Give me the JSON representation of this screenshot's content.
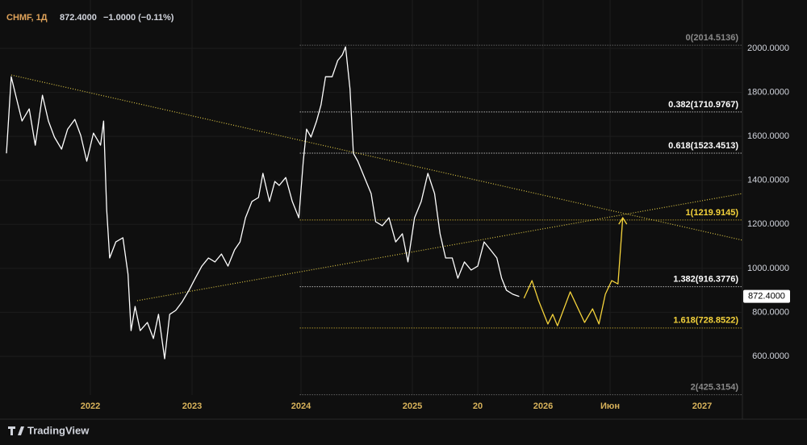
{
  "header": {
    "symbol": "CHMF, 1Д",
    "change": "−1.0000 (−0.11%)"
  },
  "footer": {
    "brand": "TradingView"
  },
  "chart_data": {
    "type": "line",
    "xlim": [
      2021.3,
      2027.4
    ],
    "xticks": [
      2022,
      2023,
      2024,
      2025,
      {
        "value": 2025.59,
        "label": "20"
      },
      2026,
      {
        "value": 2026.42,
        "label": "Июн"
      },
      2027
    ],
    "ylim": [
      424,
      2220
    ],
    "yticks": [
      {
        "value": 600,
        "label": "600.0000"
      },
      {
        "value": 800,
        "label": "800.0000"
      },
      {
        "value": 1000,
        "label": "1000.0000"
      },
      {
        "value": 1200,
        "label": "1200.0000"
      },
      {
        "value": 1400,
        "label": "1400.0000"
      },
      {
        "value": 1600,
        "label": "1600.0000"
      },
      {
        "value": 1800,
        "label": "1800.0000"
      },
      {
        "value": 2000,
        "label": "2000.0000"
      }
    ],
    "grid": true,
    "last_price": {
      "value": 872.4,
      "label": "872.4000"
    },
    "series": [
      {
        "color": "#ffffff",
        "x": [
          2021.3,
          2021.34,
          2021.38,
          2021.43,
          2021.49,
          2021.54,
          2021.6,
          2021.65,
          2021.7,
          2021.76,
          2021.81,
          2021.87,
          2021.92,
          2021.97,
          2022.03,
          2022.1,
          2022.13,
          2022.16,
          2022.19,
          2022.25,
          2022.32,
          2022.37,
          2022.4,
          2022.44,
          2022.49,
          2022.56,
          2022.62,
          2022.67,
          2022.73,
          2022.78,
          2022.84,
          2022.9,
          2022.97,
          2023.03,
          2023.09,
          2023.15,
          2023.21,
          2023.27,
          2023.33,
          2023.39,
          2023.44,
          2023.49,
          2023.55,
          2023.61,
          2023.65,
          2023.71,
          2023.76,
          2023.8,
          2023.86,
          2023.92,
          2023.98,
          2024.02,
          2024.05,
          2024.09,
          2024.14,
          2024.18,
          2024.22,
          2024.28,
          2024.33,
          2024.37,
          2024.4,
          2024.44,
          2024.47,
          2024.51,
          2024.57,
          2024.63,
          2024.67,
          2024.73,
          2024.79,
          2024.85,
          2024.91,
          2024.96,
          2025.02,
          2025.08,
          2025.14,
          2025.2,
          2025.25,
          2025.3,
          2025.36,
          2025.41,
          2025.47,
          2025.53,
          2025.59,
          2025.63,
          2025.67,
          2025.71,
          2025.74,
          2025.77,
          2025.81,
          2025.85
        ],
        "values": [
          1523,
          1871,
          1780,
          1670,
          1725,
          1560,
          1787,
          1670,
          1597,
          1542,
          1633,
          1677,
          1604,
          1487,
          1615,
          1560,
          1670,
          1267,
          1047,
          1120,
          1139,
          974,
          717,
          827,
          717,
          754,
          681,
          791,
          589,
          791,
          809,
          846,
          900,
          955,
          1010,
          1047,
          1029,
          1065,
          1010,
          1084,
          1120,
          1230,
          1304,
          1322,
          1432,
          1304,
          1395,
          1377,
          1413,
          1304,
          1230,
          1487,
          1633,
          1597,
          1670,
          1743,
          1871,
          1871,
          1945,
          1970,
          2007,
          1816,
          1523,
          1487,
          1413,
          1340,
          1212,
          1194,
          1230,
          1120,
          1157,
          1029,
          1230,
          1304,
          1432,
          1340,
          1157,
          1047,
          1047,
          955,
          1029,
          992,
          1010,
          1120,
          1084,
          1047,
          955,
          900,
          882,
          872.4
        ]
      },
      {
        "color": "#f5d33b",
        "x": [
          2025.88,
          2025.93,
          2025.97,
          2026.03,
          2026.06,
          2026.09,
          2026.17,
          2026.26,
          2026.31,
          2026.35,
          2026.39,
          2026.43,
          2026.47,
          2026.5
        ],
        "values": [
          864,
          944,
          856,
          747,
          791,
          739,
          893,
          754,
          816,
          747,
          882,
          944,
          929,
          1230
        ]
      }
    ],
    "trendlines": [
      {
        "color": "#d8c244",
        "x": [
          2021.34,
          2027.4
        ],
        "y": [
          1879,
          1128
        ]
      },
      {
        "color": "#d8c244",
        "x": [
          2022.46,
          2027.4
        ],
        "y": [
          853,
          1340
        ]
      }
    ],
    "fib_start": 2023.99,
    "fib_levels": [
      {
        "value": 2014.5136,
        "label": "0(2014.5136)",
        "color": "#8a8a8a"
      },
      {
        "value": 1710.9767,
        "label": "0.382(1710.9767)",
        "color": "#ffffff"
      },
      {
        "value": 1523.4513,
        "label": "0.618(1523.4513)",
        "color": "#ffffff"
      },
      {
        "value": 1219.9145,
        "label": "1(1219.9145)",
        "color": "#f5d33b"
      },
      {
        "value": 916.3776,
        "label": "1.382(916.3776)",
        "color": "#ffffff"
      },
      {
        "value": 728.8522,
        "label": "1.618(728.8522)",
        "color": "#f5d33b"
      },
      {
        "value": 425.3154,
        "label": "2(425.3154)",
        "color": "#8a8a8a"
      }
    ]
  }
}
